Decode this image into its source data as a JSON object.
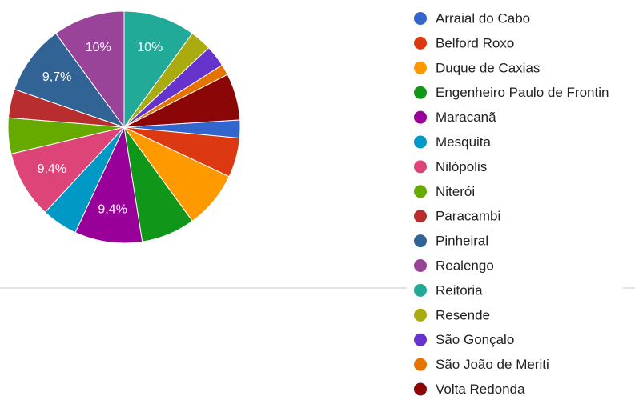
{
  "chart_data": {
    "type": "pie",
    "categories": [
      "Arraial do Cabo",
      "Belford Roxo",
      "Duque de Caxias",
      "Engenheiro Paulo de Frontin",
      "Maracanã",
      "Mesquita",
      "Nilópolis",
      "Niterói",
      "Paracambi",
      "Pinheiral",
      "Realengo",
      "Reitoria",
      "Resende",
      "São Gonçalo",
      "São João de Meriti",
      "Volta Redonda"
    ],
    "values": [
      2.5,
      5.5,
      8,
      7.5,
      9.4,
      5,
      9.4,
      5,
      4,
      9.7,
      10,
      10,
      3,
      3,
      1.5,
      6.5
    ],
    "value_labels": [
      null,
      null,
      null,
      null,
      "9,4%",
      null,
      "9,4%",
      null,
      null,
      "9,7%",
      "10%",
      "10%",
      null,
      null,
      null,
      null
    ],
    "colors": [
      "#3366cc",
      "#dc3912",
      "#ff9900",
      "#109618",
      "#990099",
      "#0099c6",
      "#dd4477",
      "#66aa00",
      "#b82e2e",
      "#316395",
      "#994499",
      "#22aa99",
      "#aaaa11",
      "#6633cc",
      "#e67300",
      "#8b0707"
    ],
    "legend": "right"
  }
}
